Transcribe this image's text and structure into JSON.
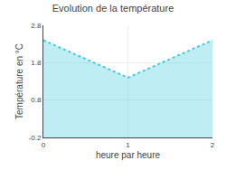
{
  "chart_data": {
    "type": "area",
    "title": "Evolution de la température",
    "xlabel": "heure par heure",
    "ylabel": "Température en °C",
    "x": [
      0,
      1,
      2
    ],
    "values": [
      2.4,
      1.4,
      2.4
    ],
    "color": "#44ccdd",
    "line_style": "dotted",
    "xlim": [
      0,
      2
    ],
    "xticks": [
      0,
      1,
      2
    ],
    "ylim": [
      -0.2,
      2.8
    ],
    "yticks": [
      -0.2,
      0.8,
      1.8,
      2.8
    ],
    "grid": true
  }
}
